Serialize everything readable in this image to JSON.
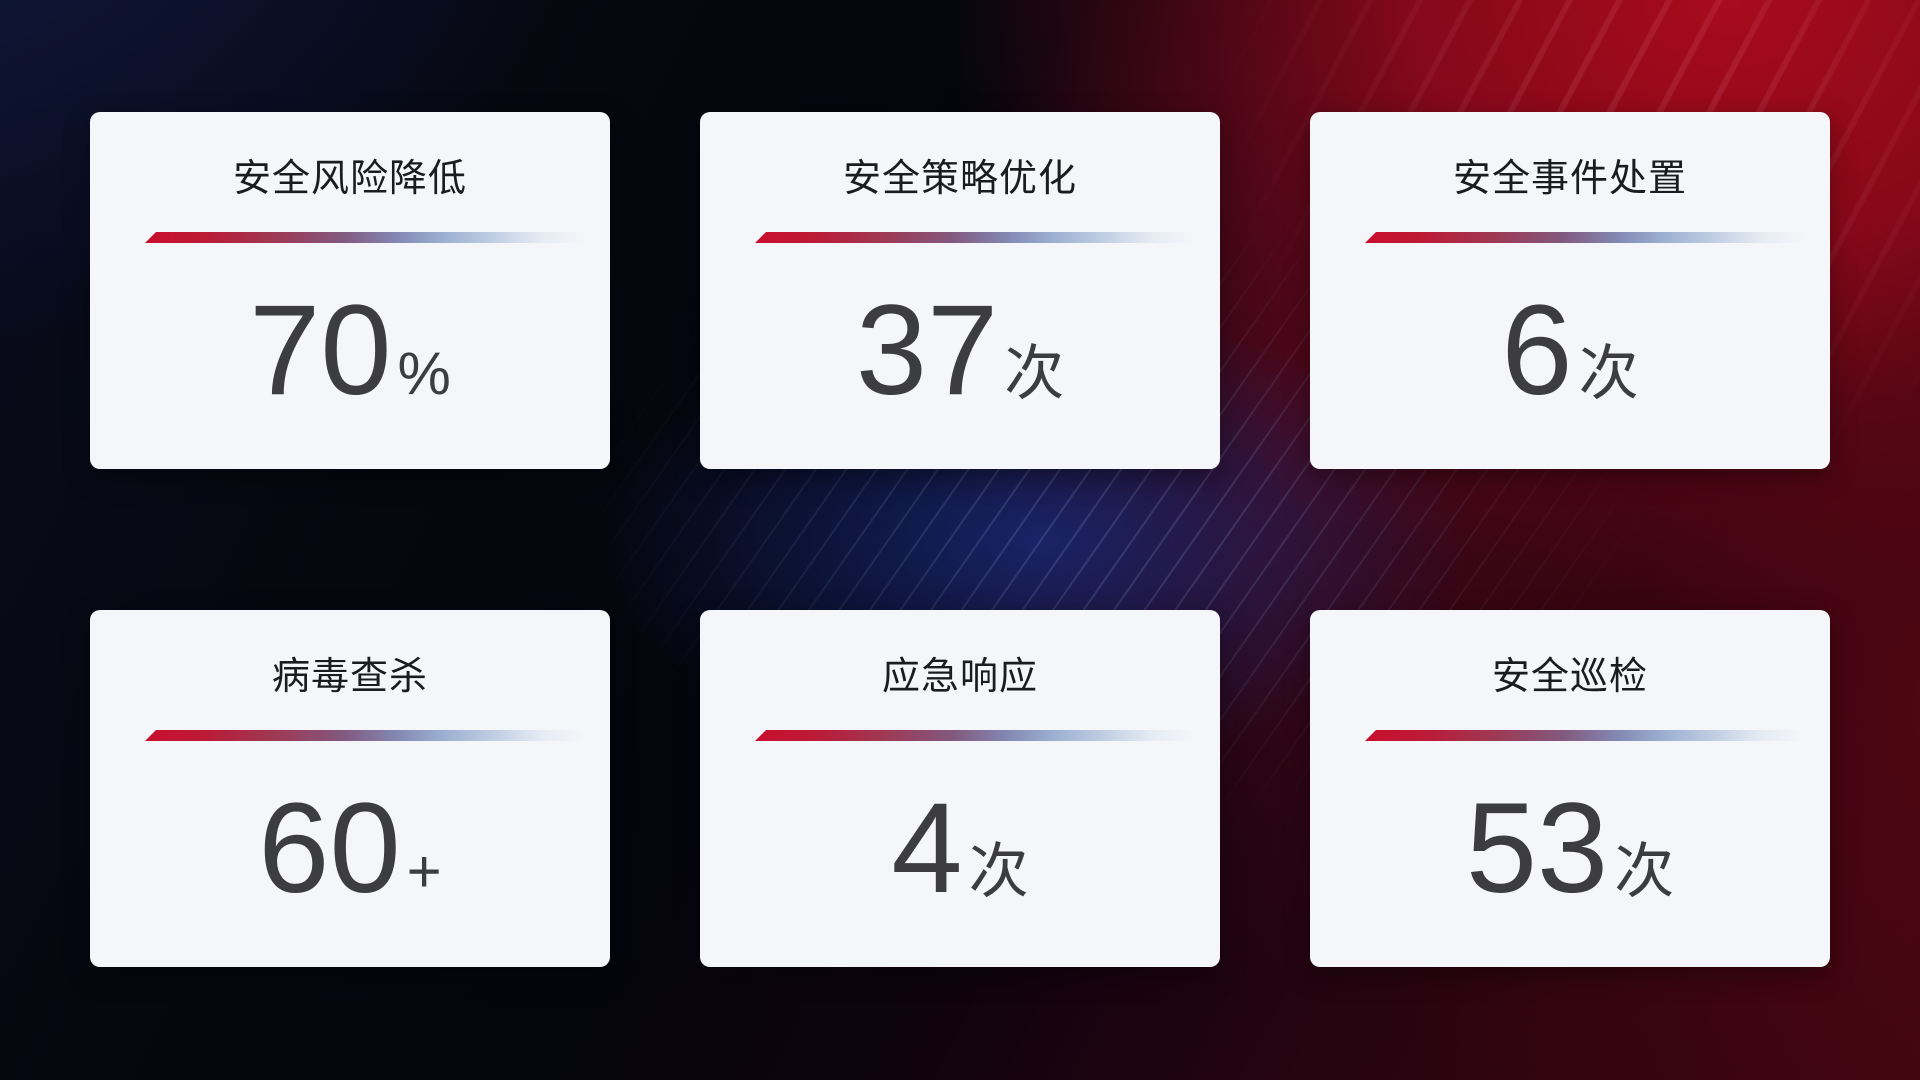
{
  "cards": [
    {
      "title": "安全风险降低",
      "value": "70",
      "unit": "%"
    },
    {
      "title": "安全策略优化",
      "value": "37",
      "unit": "次"
    },
    {
      "title": "安全事件处置",
      "value": "6",
      "unit": "次"
    },
    {
      "title": "病毒查杀",
      "value": "60",
      "unit": "+"
    },
    {
      "title": "应急响应",
      "value": "4",
      "unit": "次"
    },
    {
      "title": "安全巡检",
      "value": "53",
      "unit": "次"
    }
  ],
  "colors": {
    "card_background": "#f5f6f9",
    "title_text": "#1b1c20",
    "value_text": "#3c3c41",
    "divider_start_red": "#c90e2d",
    "divider_mid_blue": "#9cb0d2",
    "background_navy": "#0a0e24",
    "background_red": "#a80b1d",
    "background_black": "#06060f"
  }
}
